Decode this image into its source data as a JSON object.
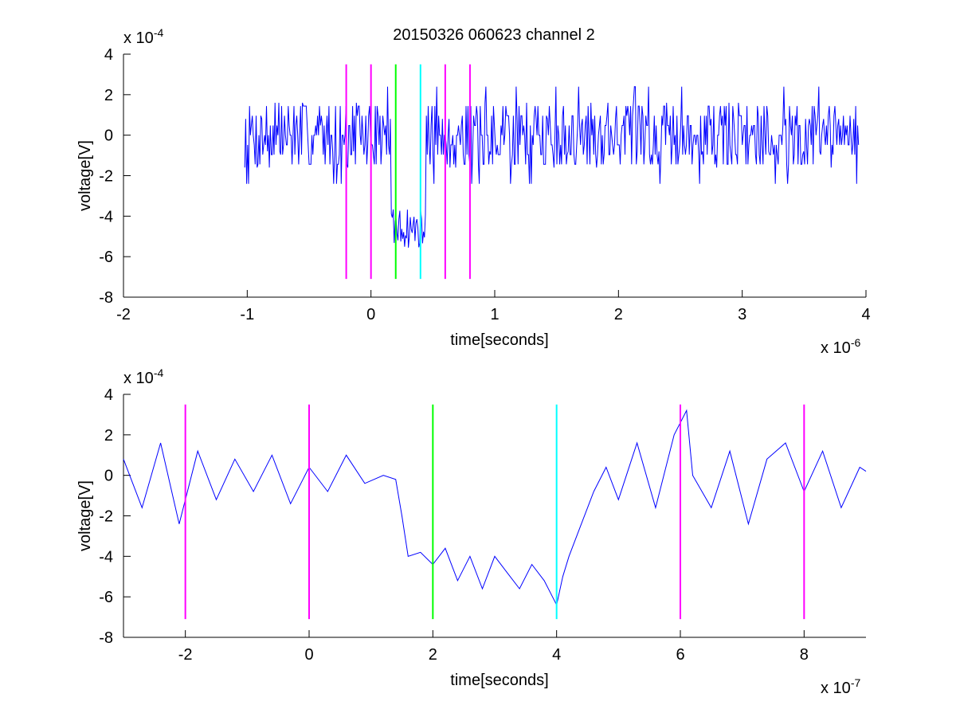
{
  "figure": {
    "title": "20150326 060623 channel 2"
  },
  "chart_data": [
    {
      "type": "line",
      "title": "20150326 060623 channel 2",
      "xlabel": "time[seconds]",
      "ylabel": "voltage[V]",
      "x_multiplier": "x 10",
      "x_exponent": "-6",
      "y_multiplier": "x 10",
      "y_exponent": "-4",
      "xlim": [
        -2,
        4
      ],
      "ylim": [
        -8,
        4
      ],
      "x_ticks": [
        -2,
        -1,
        0,
        1,
        2,
        3,
        4
      ],
      "y_ticks": [
        -8,
        -6,
        -4,
        -2,
        0,
        2,
        4
      ],
      "grid": false,
      "box": "left-bottom",
      "signal": {
        "name": "voltage",
        "color": "#0000ff",
        "x_start": -1.02,
        "x_end": 3.94,
        "baseline": [
          0.0,
          -0.2,
          0.4,
          0.2,
          -0.4,
          0.6,
          0.0,
          -0.6,
          0.8,
          -0.2,
          0.2,
          -0.8,
          0.4,
          0.6,
          -0.4,
          0.0,
          0.2,
          -0.2,
          0.8,
          -0.6
        ],
        "noise_levels": [
          -2.4,
          -1.6,
          -0.8,
          0.0,
          0.8,
          1.6,
          2.4
        ],
        "pulse": {
          "start": 0.16,
          "end": 0.44,
          "level": -4.6
        }
      },
      "markers": [
        {
          "x": -0.2,
          "y_bottom": -7.1,
          "y_top": 3.5,
          "color": "#ff00ff"
        },
        {
          "x": 0.0,
          "y_bottom": -7.1,
          "y_top": 3.5,
          "color": "#ff00ff"
        },
        {
          "x": 0.2,
          "y_bottom": -7.1,
          "y_top": 3.5,
          "color": "#00ff00"
        },
        {
          "x": 0.4,
          "y_bottom": -7.1,
          "y_top": 3.5,
          "color": "#00ffff"
        },
        {
          "x": 0.6,
          "y_bottom": -7.1,
          "y_top": 3.5,
          "color": "#ff00ff"
        },
        {
          "x": 0.8,
          "y_bottom": -7.1,
          "y_top": 3.5,
          "color": "#ff00ff"
        }
      ]
    },
    {
      "type": "line",
      "title": "",
      "xlabel": "time[seconds]",
      "ylabel": "voltage[V]",
      "x_multiplier": "x 10",
      "x_exponent": "-7",
      "y_multiplier": "x 10",
      "y_exponent": "-4",
      "xlim": [
        -3,
        9
      ],
      "ylim": [
        -8,
        4
      ],
      "x_ticks": [
        -2,
        0,
        2,
        4,
        6,
        8
      ],
      "y_ticks": [
        -8,
        -6,
        -4,
        -2,
        0,
        2,
        4
      ],
      "grid": false,
      "box": "left-bottom",
      "signal": {
        "name": "voltage",
        "color": "#0000ff",
        "x": [
          -3.0,
          -2.7,
          -2.4,
          -2.1,
          -1.8,
          -1.5,
          -1.2,
          -0.9,
          -0.6,
          -0.3,
          0.0,
          0.3,
          0.6,
          0.9,
          1.2,
          1.4,
          1.5,
          1.6,
          1.8,
          2.0,
          2.2,
          2.4,
          2.6,
          2.8,
          3.0,
          3.2,
          3.4,
          3.6,
          3.8,
          4.0,
          4.1,
          4.2,
          4.4,
          4.6,
          4.8,
          5.0,
          5.3,
          5.6,
          5.9,
          6.1,
          6.2,
          6.5,
          6.8,
          7.1,
          7.4,
          7.7,
          8.0,
          8.3,
          8.6,
          8.9,
          9.0
        ],
        "y": [
          0.8,
          -1.6,
          1.6,
          -2.4,
          1.2,
          -1.2,
          0.8,
          -0.8,
          1.0,
          -1.4,
          0.4,
          -0.8,
          1.0,
          -0.4,
          0.0,
          -0.2,
          -2.0,
          -4.0,
          -3.8,
          -4.4,
          -3.6,
          -5.2,
          -4.0,
          -5.6,
          -4.0,
          -4.8,
          -5.6,
          -4.4,
          -5.2,
          -6.4,
          -5.0,
          -4.0,
          -2.4,
          -0.8,
          0.4,
          -1.2,
          1.6,
          -1.6,
          2.0,
          3.2,
          0.0,
          -1.6,
          1.2,
          -2.4,
          0.8,
          1.6,
          -0.8,
          1.2,
          -1.6,
          0.4,
          0.2
        ]
      },
      "markers": [
        {
          "x": -2,
          "y_bottom": -7.1,
          "y_top": 3.5,
          "color": "#ff00ff"
        },
        {
          "x": 0,
          "y_bottom": -7.1,
          "y_top": 3.5,
          "color": "#ff00ff"
        },
        {
          "x": 2,
          "y_bottom": -7.1,
          "y_top": 3.5,
          "color": "#00ff00"
        },
        {
          "x": 4,
          "y_bottom": -7.1,
          "y_top": 3.5,
          "color": "#00ffff"
        },
        {
          "x": 6,
          "y_bottom": -7.1,
          "y_top": 3.5,
          "color": "#ff00ff"
        },
        {
          "x": 8,
          "y_bottom": -7.1,
          "y_top": 3.5,
          "color": "#ff00ff"
        }
      ]
    }
  ]
}
